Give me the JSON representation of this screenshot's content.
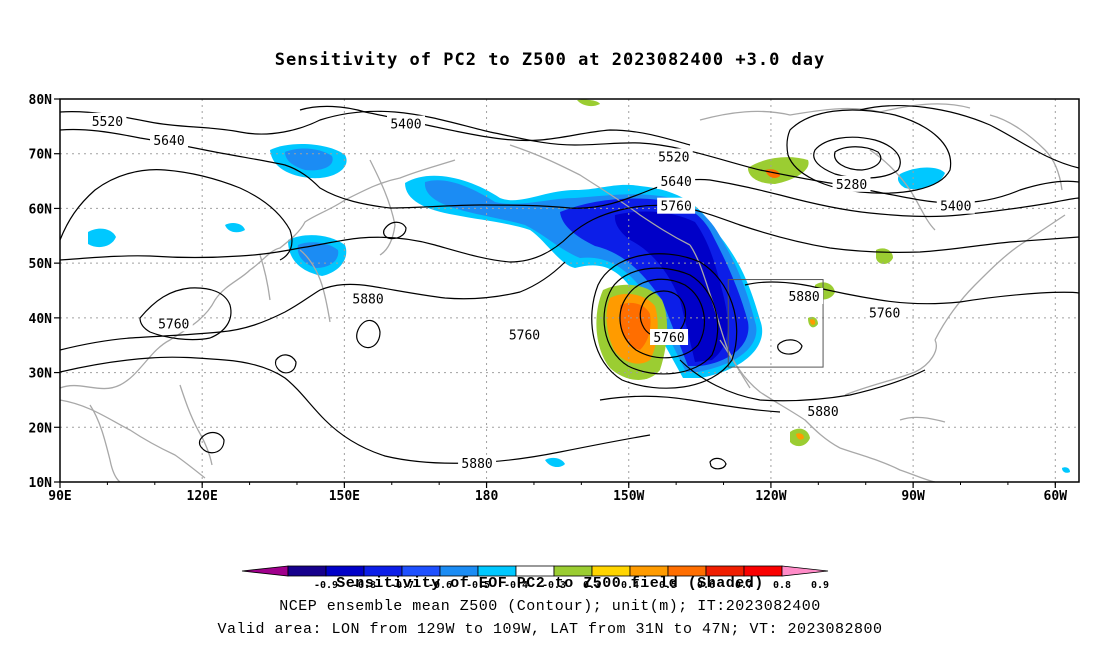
{
  "title": "Sensitivity of PC2 to Z500 at 2023082400 +3.0 day",
  "lat_labels": [
    "80N",
    "70N",
    "60N",
    "50N",
    "40N",
    "30N",
    "20N",
    "10N"
  ],
  "lon_labels": [
    "90E",
    "120E",
    "150E",
    "180",
    "150W",
    "120W",
    "90W",
    "60W"
  ],
  "contour_labels": [
    {
      "text": "5520",
      "lon": 100,
      "lat": 76
    },
    {
      "text": "5400",
      "lon": 163,
      "lat": 75.5
    },
    {
      "text": "5640",
      "lon": 113,
      "lat": 72.5
    },
    {
      "text": "5520",
      "lon": -140.5,
      "lat": 69.5
    },
    {
      "text": "5640",
      "lon": -140,
      "lat": 65
    },
    {
      "text": "5760",
      "lon": -140,
      "lat": 60.5
    },
    {
      "text": "5280",
      "lon": -103,
      "lat": 64.5
    },
    {
      "text": "5400",
      "lon": -81,
      "lat": 60.5
    },
    {
      "text": "5880",
      "lon": 155,
      "lat": 43.5
    },
    {
      "text": "5760",
      "lon": 114,
      "lat": 39
    },
    {
      "text": "5760",
      "lon": -172,
      "lat": 37
    },
    {
      "text": "5760",
      "lon": -141.5,
      "lat": 36.5
    },
    {
      "text": "5880",
      "lon": -113,
      "lat": 44
    },
    {
      "text": "5760",
      "lon": -96,
      "lat": 41
    },
    {
      "text": "5880",
      "lon": -109,
      "lat": 23
    },
    {
      "text": "5880",
      "lon": -182,
      "lat": 13.5
    }
  ],
  "target_box": {
    "lon_min": -129,
    "lon_max": -109,
    "lat_min": 31,
    "lat_max": 47
  },
  "colorbar": {
    "labels": [
      "-0.9",
      "-0.8",
      "-0.7",
      "-0.6",
      "-0.5",
      "-0.4",
      "-0.3",
      "0.3",
      "0.4",
      "0.5",
      "0.6",
      "0.7",
      "0.8",
      "0.9"
    ],
    "colors": [
      "#a0008c",
      "#16008c",
      "#0000c8",
      "#0c1ee8",
      "#1e50ff",
      "#1b8cf4",
      "#00c8ff",
      "#ffffff",
      "#9bcd32",
      "#ffd500",
      "#ff9b00",
      "#ff6e00",
      "#f01e00",
      "#fa0000",
      "#ff8cc8"
    ]
  },
  "footer": {
    "line1": "Sensitivity of EOF PC2 to Z500 field (Shaded)",
    "line2": "NCEP ensemble mean Z500 (Contour); unit(m); IT:2023082400",
    "line3": "Valid area: LON from 129W to 109W, LAT from 31N to 47N; VT: 2023082800"
  }
}
